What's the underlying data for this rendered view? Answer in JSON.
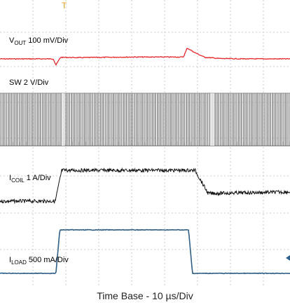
{
  "chart_data": {
    "type": "line",
    "time_base": "Time Base - 10 µs/Div",
    "grid": true,
    "x_divisions": 10,
    "x_unit": "µs",
    "trigger_marker": "T",
    "channels": [
      {
        "name": "VOUT",
        "label_main": "V",
        "label_sub": "OUT",
        "label_rest": " 100 mV/Div",
        "color": "#e8262b",
        "unit": "mV",
        "x": [
          0,
          8.2,
          8.6,
          9.3,
          12,
          20,
          28.2,
          28.8,
          30.0,
          31.5,
          34,
          38,
          42,
          44.6
        ],
        "y": [
          0,
          0,
          -40,
          10,
          8,
          12,
          12,
          70,
          40,
          10,
          2,
          0,
          0,
          0
        ]
      },
      {
        "name": "SW",
        "label_main": "SW",
        "label_sub": "",
        "label_rest": " 2 V/Div",
        "color": "#8a8a8a",
        "unit": "V",
        "x": [
          0,
          44.6
        ],
        "y_low": 0,
        "y_high": 4.6,
        "note": "switching waveform"
      },
      {
        "name": "ICOIL",
        "label_main": "I",
        "label_sub": "COIL",
        "label_rest": " 1 A/Div",
        "color": "#111111",
        "unit": "A",
        "x": [
          0,
          8.5,
          9.5,
          30.0,
          32.0,
          44.6
        ],
        "y": [
          0,
          0,
          2.0,
          2.0,
          0.5,
          0.6
        ]
      },
      {
        "name": "ILOAD",
        "label_main": "I",
        "label_sub": "LOAD",
        "label_rest": " 500 mA/Div",
        "color": "#2f5f86",
        "unit": "mA",
        "x": [
          0,
          8.6,
          9.2,
          29.0,
          29.6,
          44.6
        ],
        "y": [
          0,
          0,
          1000,
          1000,
          0,
          0
        ]
      }
    ]
  }
}
